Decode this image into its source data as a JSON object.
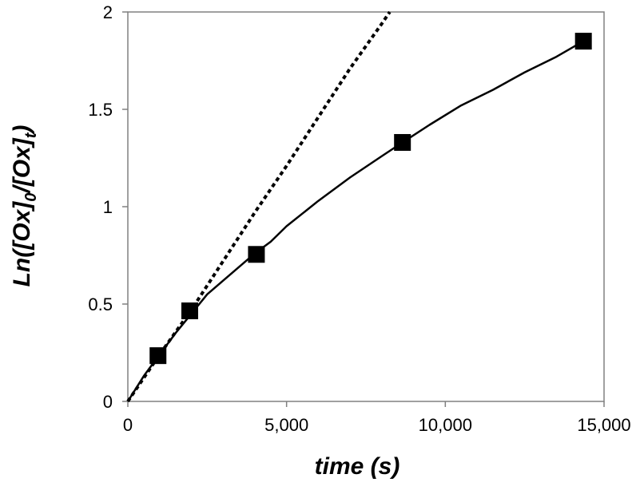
{
  "chart_data": {
    "type": "scatter",
    "xlabel": "time (s)",
    "ylabel": {
      "prefix": "Ln([Ox]",
      "sub1": "0",
      "mid": "/[Ox]",
      "sub2": "t",
      "suffix": ")"
    },
    "xlim": [
      0,
      15000
    ],
    "ylim": [
      0,
      2
    ],
    "x_ticks": [
      0,
      5000,
      10000,
      15000
    ],
    "x_tick_labels": [
      "0",
      "5,000",
      "10,000",
      "15,000"
    ],
    "y_ticks": [
      0,
      0.5,
      1,
      1.5,
      2
    ],
    "y_tick_labels": [
      "0",
      "0.5",
      "1",
      "1.5",
      "2"
    ],
    "grid": false,
    "legend": "none",
    "series": [
      {
        "style": "markers",
        "marker": "square",
        "color": "#000000",
        "x": [
          950,
          1950,
          4050,
          8650,
          14350
        ],
        "y": [
          0.235,
          0.465,
          0.755,
          1.33,
          1.85
        ]
      },
      {
        "style": "solid-line",
        "color": "#000000",
        "x": [
          0,
          500,
          1000,
          1500,
          2000,
          2500,
          3000,
          3500,
          4000,
          4500,
          5000,
          6000,
          7000,
          8000,
          8650,
          9500,
          10500,
          11500,
          12500,
          13500,
          14350
        ],
        "y": [
          0,
          0.13,
          0.24,
          0.35,
          0.45,
          0.55,
          0.62,
          0.69,
          0.76,
          0.82,
          0.9,
          1.03,
          1.15,
          1.26,
          1.33,
          1.42,
          1.52,
          1.6,
          1.69,
          1.77,
          1.85
        ]
      },
      {
        "style": "dotted-line",
        "color": "#000000",
        "x": [
          0,
          1000,
          2000,
          3000,
          4000,
          5000,
          6000,
          7000,
          8000,
          8250
        ],
        "y": [
          0,
          0.24,
          0.47,
          0.72,
          0.97,
          1.21,
          1.46,
          1.71,
          1.94,
          2.0
        ]
      }
    ]
  },
  "style": {
    "axis_color": "#808080",
    "ink": "#000000"
  }
}
